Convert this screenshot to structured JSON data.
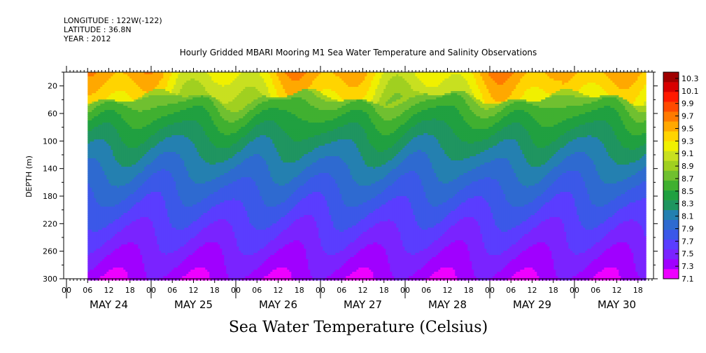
{
  "meta": {
    "longitude": "LONGITUDE : 122W(-122)",
    "latitude": "LATITUDE : 36.8N",
    "year": "YEAR : 2012"
  },
  "chart_data": {
    "type": "heatmap",
    "title": "Hourly Gridded MBARI Mooring M1 Sea Water Temperature and Salinity Observations",
    "xlabel": "Sea Water Temperature (Celsius)",
    "ylabel": "DEPTH (m)",
    "y_axis": {
      "ylim": [
        0,
        300
      ],
      "inverted": true,
      "ticks": [
        20,
        60,
        100,
        140,
        180,
        220,
        260,
        300
      ]
    },
    "x_axis": {
      "hour_ticks": [
        "00",
        "06",
        "12",
        "18"
      ],
      "days": [
        "MAY 24",
        "MAY 25",
        "MAY 26",
        "MAY 27",
        "MAY 28",
        "MAY 29",
        "MAY 30"
      ],
      "data_start_hour": 6,
      "data_end_hour": 164
    },
    "colorbar": {
      "levels": [
        "10.3",
        "10.1",
        "9.9",
        "9.7",
        "9.5",
        "9.3",
        "9.1",
        "8.9",
        "8.7",
        "8.5",
        "8.3",
        "8.1",
        "7.9",
        "7.7",
        "7.5",
        "7.3",
        "7.1"
      ],
      "range": [
        7.1,
        10.4
      ],
      "colors": [
        "#ee00ff",
        "#a000ff",
        "#7a23ff",
        "#5a3dff",
        "#3b58e8",
        "#2e6ad0",
        "#2480b0",
        "#1f9560",
        "#20a040",
        "#40b030",
        "#70c030",
        "#a0d020",
        "#c8e020",
        "#f0f000",
        "#ffd400",
        "#ffa800",
        "#ff7a00",
        "#ff4a00",
        "#ff1a00",
        "#d80000",
        "#a00000"
      ]
    }
  }
}
